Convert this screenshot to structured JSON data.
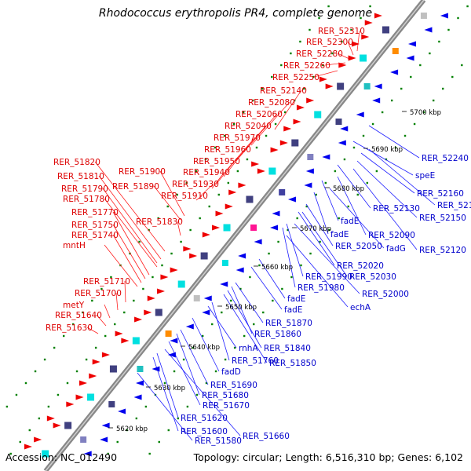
{
  "title": "Rhodococcus erythropolis PR4, complete genome",
  "accession": "Accession: NC_012490",
  "summary": "Topology: circular; Length: 6,516,310 bp; Genes: 6,102",
  "colors": {
    "label_left": "#dd0000",
    "label_right": "#0000cc",
    "leader_left": "#ff2020",
    "leader_right": "#2020ff",
    "backbone": "#888888",
    "ticks": "#008000"
  },
  "scale_labels": [
    "5620 kbp",
    "5630 kbp",
    "5640 kbp",
    "5650 kbp",
    "5660 kbp",
    "5670 kbp",
    "5680 kbp",
    "5690 kbp",
    "5700 kbp"
  ],
  "left_labels": [
    "RER_52310",
    "RER_52300",
    "RER_52280",
    "RER_52260",
    "RER_52250",
    "RER_52140",
    "RER_52080",
    "RER_52060",
    "RER_52040",
    "RER_51970",
    "RER_51960",
    "RER_51950",
    "RER_51940",
    "RER_51930",
    "RER_51910",
    "RER_51900",
    "RER_51890",
    "RER_51820",
    "RER_51810",
    "RER_51790",
    "RER_51780",
    "RER_51830",
    "RER_51770",
    "RER_51750",
    "RER_51740",
    "mntH",
    "RER_51710",
    "RER_51700",
    "metY",
    "RER_51640",
    "RER_51630"
  ],
  "right_labels": [
    "RER_52240",
    "speE",
    "RER_52160",
    "RER_52170",
    "RER_52130",
    "RER_52150",
    "fadE",
    "RER_52090",
    "fadE",
    "RER_52120",
    "fadG",
    "RER_52050",
    "RER_52020",
    "RER_52030",
    "RER_51990",
    "RER_51980",
    "RER_52000",
    "echA",
    "fadE",
    "fadE",
    "RER_51870",
    "RER_51860",
    "RER_51840",
    "rnhA",
    "RER_51760",
    "RER_51850",
    "fadD",
    "RER_51690",
    "RER_51680",
    "RER_51670",
    "RER_51620",
    "RER_51600",
    "RER_51660",
    "RER_51580"
  ]
}
